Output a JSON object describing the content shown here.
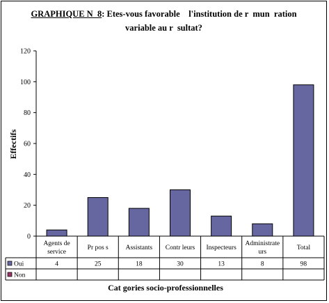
{
  "chart_data": {
    "type": "bar",
    "title_prefix": "GRAPHIQUE N  8",
    "title_line1_rest": ": Etes-vous favorable    l'institution de r  mun  ration",
    "title_line2": "variable au r  sultat?",
    "ylabel": "Effectifs",
    "xlabel": "Cat  gories socio-professionnelles",
    "ylim": [
      0,
      120
    ],
    "yticks": [
      0,
      20,
      40,
      60,
      80,
      100,
      120
    ],
    "categories": [
      [
        "Agents de",
        "service"
      ],
      [
        "Pr  pos  s"
      ],
      [
        "Assistants"
      ],
      [
        "Contr  leurs"
      ],
      [
        "Inspecteurs"
      ],
      [
        "Administrate",
        "urs"
      ],
      [
        "Total"
      ]
    ],
    "series": [
      {
        "name": "Oui",
        "color": "#6666a0",
        "values": [
          4,
          25,
          18,
          30,
          13,
          8,
          98
        ]
      },
      {
        "name": "Non",
        "color": "#993366",
        "values": [
          null,
          null,
          null,
          null,
          null,
          null,
          null
        ]
      }
    ],
    "grid": false,
    "legend": "data-table"
  }
}
